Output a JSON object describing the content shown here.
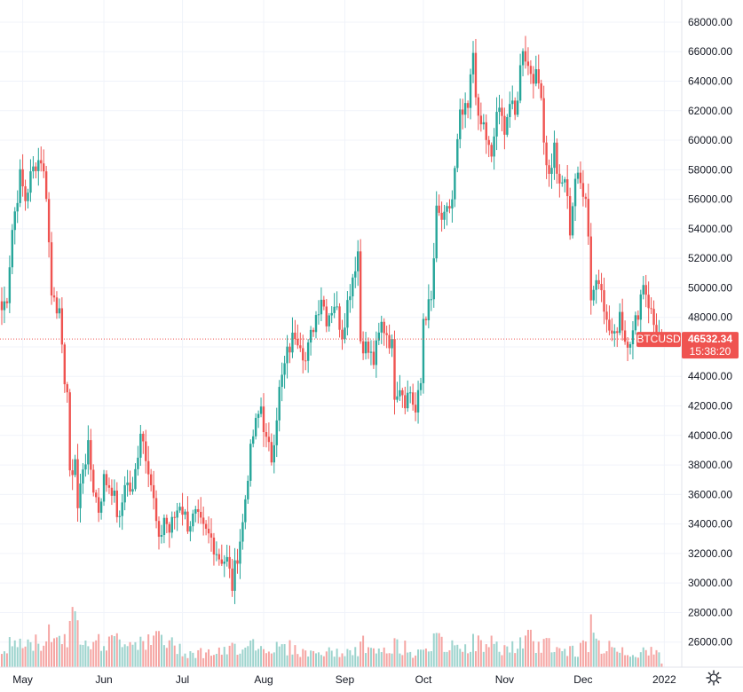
{
  "chart_data": {
    "type": "candlestick",
    "symbol": "BTCUSD",
    "last_price": "46532.34",
    "countdown": "15:38:20",
    "y_ticks": [
      "26000.00",
      "28000.00",
      "30000.00",
      "32000.00",
      "34000.00",
      "36000.00",
      "38000.00",
      "40000.00",
      "42000.00",
      "44000.00",
      "46000.00",
      "48000.00",
      "50000.00",
      "52000.00",
      "54000.00",
      "56000.00",
      "58000.00",
      "60000.00",
      "62000.00",
      "64000.00",
      "66000.00",
      "68000.00"
    ],
    "x_ticks": [
      "May",
      "Jun",
      "Jul",
      "Aug",
      "Sep",
      "Oct",
      "Nov",
      "Dec",
      "2022"
    ],
    "ylim": [
      24300,
      69500
    ],
    "grid": true,
    "colors": {
      "up": "#26a69a",
      "down": "#ef5350",
      "up_volume": "#9cd3cd",
      "down_volume": "#f5a5a3",
      "grid": "#f0f3fa",
      "axis_text": "#131722",
      "price_line": "#ef5350"
    },
    "keypoints": [
      [
        "2021-04-23",
        48500,
        0.3
      ],
      [
        "2021-04-25",
        49500,
        0.4
      ],
      [
        "2021-04-27",
        54000,
        0.5
      ],
      [
        "2021-04-30",
        57500,
        0.5
      ],
      [
        "2021-05-02",
        56000,
        0.4
      ],
      [
        "2021-05-04",
        57500,
        0.5
      ],
      [
        "2021-05-06",
        58500,
        0.5
      ],
      [
        "2021-05-08",
        58800,
        0.5
      ],
      [
        "2021-05-10",
        56500,
        0.6
      ],
      [
        "2021-05-12",
        49500,
        0.8
      ],
      [
        "2021-05-13",
        49800,
        0.6
      ],
      [
        "2021-05-15",
        48000,
        0.6
      ],
      [
        "2021-05-16",
        45500,
        0.7
      ],
      [
        "2021-05-17",
        44000,
        0.7
      ],
      [
        "2021-05-18",
        43000,
        0.6
      ],
      [
        "2021-05-19",
        37000,
        1.0
      ],
      [
        "2021-05-21",
        38500,
        0.9
      ],
      [
        "2021-05-22",
        35000,
        0.8
      ],
      [
        "2021-05-24",
        38000,
        0.7
      ],
      [
        "2021-05-26",
        39000,
        0.6
      ],
      [
        "2021-05-28",
        36500,
        0.6
      ],
      [
        "2021-05-30",
        35000,
        0.5
      ],
      [
        "2021-06-01",
        37000,
        0.5
      ],
      [
        "2021-06-04",
        36500,
        0.5
      ],
      [
        "2021-06-07",
        34000,
        0.6
      ],
      [
        "2021-06-09",
        37000,
        0.6
      ],
      [
        "2021-06-12",
        36000,
        0.5
      ],
      [
        "2021-06-15",
        40500,
        0.6
      ],
      [
        "2021-06-18",
        38000,
        0.5
      ],
      [
        "2021-06-20",
        35500,
        0.5
      ],
      [
        "2021-06-22",
        32500,
        0.7
      ],
      [
        "2021-06-24",
        34500,
        0.5
      ],
      [
        "2021-06-26",
        33500,
        0.5
      ],
      [
        "2021-06-28",
        34500,
        0.4
      ],
      [
        "2021-06-30",
        35500,
        0.4
      ],
      [
        "2021-07-03",
        34000,
        0.3
      ],
      [
        "2021-07-06",
        34500,
        0.3
      ],
      [
        "2021-07-09",
        33500,
        0.3
      ],
      [
        "2021-07-12",
        33000,
        0.3
      ],
      [
        "2021-07-15",
        31800,
        0.3
      ],
      [
        "2021-07-18",
        31500,
        0.3
      ],
      [
        "2021-07-20",
        29800,
        0.4
      ],
      [
        "2021-07-22",
        32000,
        0.4
      ],
      [
        "2021-07-24",
        34000,
        0.4
      ],
      [
        "2021-07-26",
        37500,
        0.6
      ],
      [
        "2021-07-28",
        40000,
        0.5
      ],
      [
        "2021-07-31",
        42000,
        0.4
      ],
      [
        "2021-08-02",
        39500,
        0.4
      ],
      [
        "2021-08-04",
        38500,
        0.4
      ],
      [
        "2021-08-07",
        43000,
        0.4
      ],
      [
        "2021-08-10",
        45500,
        0.4
      ],
      [
        "2021-08-13",
        47000,
        0.4
      ],
      [
        "2021-08-15",
        46500,
        0.3
      ],
      [
        "2021-08-17",
        45000,
        0.3
      ],
      [
        "2021-08-20",
        47500,
        0.3
      ],
      [
        "2021-08-23",
        49500,
        0.3
      ],
      [
        "2021-08-25",
        48000,
        0.3
      ],
      [
        "2021-08-28",
        49000,
        0.3
      ],
      [
        "2021-08-31",
        47000,
        0.3
      ],
      [
        "2021-09-03",
        50000,
        0.3
      ],
      [
        "2021-09-06",
        52500,
        0.3
      ],
      [
        "2021-09-07",
        46500,
        0.6
      ],
      [
        "2021-09-09",
        46000,
        0.4
      ],
      [
        "2021-09-12",
        45000,
        0.3
      ],
      [
        "2021-09-15",
        47500,
        0.3
      ],
      [
        "2021-09-17",
        47000,
        0.3
      ],
      [
        "2021-09-19",
        46000,
        0.3
      ],
      [
        "2021-09-20",
        43000,
        0.5
      ],
      [
        "2021-09-22",
        43500,
        0.4
      ],
      [
        "2021-09-24",
        42500,
        0.4
      ],
      [
        "2021-09-26",
        43000,
        0.3
      ],
      [
        "2021-09-28",
        41500,
        0.3
      ],
      [
        "2021-09-30",
        43500,
        0.4
      ],
      [
        "2021-10-01",
        48000,
        0.5
      ],
      [
        "2021-10-04",
        49000,
        0.4
      ],
      [
        "2021-10-06",
        55000,
        0.6
      ],
      [
        "2021-10-09",
        54500,
        0.4
      ],
      [
        "2021-10-12",
        56000,
        0.4
      ],
      [
        "2021-10-15",
        61500,
        0.5
      ],
      [
        "2021-10-18",
        62000,
        0.4
      ],
      [
        "2021-10-20",
        66000,
        0.5
      ],
      [
        "2021-10-22",
        61000,
        0.5
      ],
      [
        "2021-10-24",
        61000,
        0.4
      ],
      [
        "2021-10-27",
        58500,
        0.5
      ],
      [
        "2021-10-29",
        62000,
        0.4
      ],
      [
        "2021-11-01",
        61000,
        0.4
      ],
      [
        "2021-11-03",
        62500,
        0.4
      ],
      [
        "2021-11-05",
        61500,
        0.4
      ],
      [
        "2021-11-08",
        66500,
        0.5
      ],
      [
        "2021-11-10",
        65000,
        0.6
      ],
      [
        "2021-11-12",
        64500,
        0.5
      ],
      [
        "2021-11-15",
        63500,
        0.4
      ],
      [
        "2021-11-16",
        60000,
        0.5
      ],
      [
        "2021-11-18",
        57500,
        0.5
      ],
      [
        "2021-11-20",
        59500,
        0.4
      ],
      [
        "2021-11-22",
        56500,
        0.4
      ],
      [
        "2021-11-24",
        57500,
        0.3
      ],
      [
        "2021-11-26",
        54000,
        0.4
      ],
      [
        "2021-11-28",
        57500,
        0.3
      ],
      [
        "2021-11-30",
        57000,
        0.4
      ],
      [
        "2021-12-02",
        56500,
        0.4
      ],
      [
        "2021-12-03",
        53500,
        0.5
      ],
      [
        "2021-12-04",
        49500,
        0.9
      ],
      [
        "2021-12-06",
        50500,
        0.5
      ],
      [
        "2021-12-08",
        50500,
        0.4
      ],
      [
        "2021-12-10",
        47500,
        0.4
      ],
      [
        "2021-12-13",
        46500,
        0.4
      ],
      [
        "2021-12-15",
        48500,
        0.4
      ],
      [
        "2021-12-17",
        46500,
        0.3
      ],
      [
        "2021-12-20",
        46800,
        0.3
      ],
      [
        "2021-12-22",
        48500,
        0.3
      ],
      [
        "2021-12-24",
        50500,
        0.3
      ],
      [
        "2021-12-26",
        49000,
        0.3
      ],
      [
        "2021-12-28",
        47500,
        0.3
      ],
      [
        "2021-12-30",
        46800,
        0.3
      ],
      [
        "2021-12-31",
        46532.34,
        0.1
      ]
    ]
  }
}
